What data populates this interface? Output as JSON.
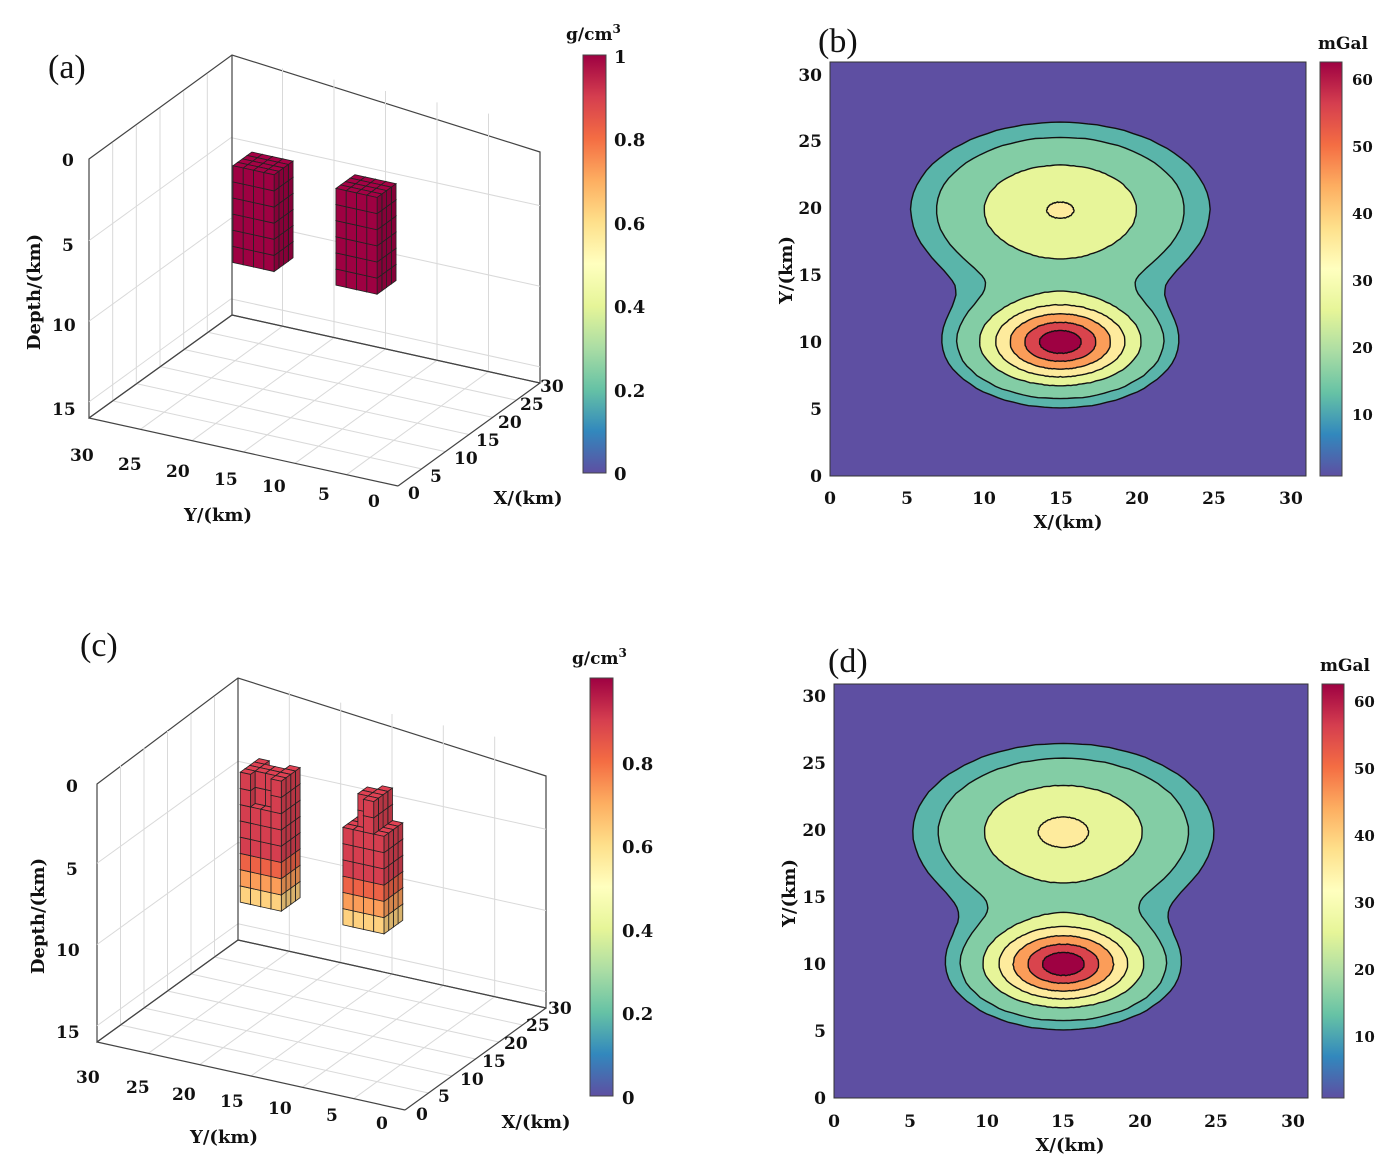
{
  "colors": {
    "background": "#5e4fa2",
    "block_red": "#d53e4f",
    "grid": "#d9d9d9",
    "spectral_colormap": [
      "#5e4fa2",
      "#3288bd",
      "#66c2a5",
      "#abdda4",
      "#e6f598",
      "#ffffbf",
      "#fee08b",
      "#fdae61",
      "#f46d43",
      "#d53e4f",
      "#9e0142"
    ]
  },
  "panels": {
    "a": {
      "label": "(a)",
      "ylabel": "Y/(km)",
      "xlabel": "X/(km)",
      "zlabel": "Depth/(km)",
      "cb_unit": "g/cm",
      "cb_unit_sup": "3"
    },
    "b": {
      "label": "(b)",
      "xlabel": "X/(km)",
      "ylabel": "Y/(km)",
      "cb_unit": "mGal"
    },
    "c": {
      "label": "(c)",
      "ylabel": "Y/(km)",
      "xlabel": "X/(km)",
      "zlabel": "Depth/(km)",
      "cb_unit": "g/cm",
      "cb_unit_sup": "3"
    },
    "d": {
      "label": "(d)",
      "xlabel": "X/(km)",
      "ylabel": "Y/(km)",
      "cb_unit": "mGal"
    }
  },
  "chart_data": [
    {
      "type": "scatter",
      "panel": "a",
      "description_type": "3d-voxel",
      "xlabel": "X/(km)",
      "ylabel": "Y/(km)",
      "zlabel": "Depth/(km)",
      "xlim": [
        0,
        30
      ],
      "ylim": [
        0,
        30
      ],
      "zlim": [
        0,
        16
      ],
      "x_ticks": [
        0,
        5,
        10,
        15,
        20,
        25,
        30
      ],
      "y_ticks": [
        30,
        25,
        20,
        15,
        10,
        5,
        0
      ],
      "z_ticks": [
        0,
        5,
        10,
        15
      ],
      "bodies": [
        {
          "x": [
            13,
            17
          ],
          "y": [
            8,
            12
          ],
          "z": [
            2,
            8
          ],
          "density": 1.0
        },
        {
          "x": [
            13,
            17
          ],
          "y": [
            18,
            22
          ],
          "z": [
            2,
            8
          ],
          "density": 1.0
        }
      ],
      "colorbar": {
        "label": "g/cm3",
        "range": [
          0,
          1
        ],
        "ticks": [
          "0",
          "0.2",
          "0.4",
          "0.6",
          "0.8",
          "1"
        ]
      }
    },
    {
      "type": "heatmap",
      "panel": "b",
      "description_type": "contour",
      "xlabel": "X/(km)",
      "ylabel": "Y/(km)",
      "xlim": [
        0,
        31
      ],
      "ylim": [
        0,
        31
      ],
      "x_ticks": [
        0,
        5,
        10,
        15,
        20,
        25,
        30
      ],
      "y_ticks": [
        0,
        5,
        10,
        15,
        20,
        25,
        30
      ],
      "contour_levels": [
        10,
        20,
        30,
        40,
        50,
        60
      ],
      "peaks": [
        {
          "x": 15,
          "y": 10,
          "value": 62
        },
        {
          "x": 15,
          "y": 20,
          "value": 30
        }
      ],
      "colorbar": {
        "label": "mGal",
        "range": [
          0,
          62
        ],
        "ticks": [
          "10",
          "20",
          "30",
          "40",
          "50",
          "60"
        ]
      }
    },
    {
      "type": "scatter",
      "panel": "c",
      "description_type": "3d-voxel",
      "xlabel": "X/(km)",
      "ylabel": "Y/(km)",
      "zlabel": "Depth/(km)",
      "xlim": [
        0,
        30
      ],
      "ylim": [
        0,
        30
      ],
      "zlim": [
        0,
        16
      ],
      "x_ticks": [
        0,
        5,
        10,
        15,
        20,
        25,
        30
      ],
      "y_ticks": [
        30,
        25,
        20,
        15,
        10,
        5,
        0
      ],
      "z_ticks": [
        0,
        5,
        10,
        15
      ],
      "bodies": [
        {
          "x": [
            13,
            17
          ],
          "y": [
            8,
            12
          ],
          "z": [
            1,
            9
          ],
          "density_core": 0.9,
          "density_edge": 0.55
        },
        {
          "x": [
            13,
            17
          ],
          "y": [
            18,
            22
          ],
          "z": [
            1,
            9
          ],
          "density_core": 0.9,
          "density_edge": 0.55
        }
      ],
      "colorbar": {
        "label": "g/cm3",
        "range": [
          0,
          1
        ],
        "ticks": [
          "0",
          "0.2",
          "0.4",
          "0.6",
          "0.8"
        ]
      }
    },
    {
      "type": "heatmap",
      "panel": "d",
      "description_type": "contour",
      "xlabel": "X/(km)",
      "ylabel": "Y/(km)",
      "xlim": [
        0,
        31
      ],
      "ylim": [
        0,
        31
      ],
      "x_ticks": [
        0,
        5,
        10,
        15,
        20,
        25,
        30
      ],
      "y_ticks": [
        0,
        5,
        10,
        15,
        20,
        25,
        30
      ],
      "contour_levels": [
        10,
        20,
        30,
        40,
        50,
        60
      ],
      "peaks": [
        {
          "x": 15,
          "y": 10,
          "value": 62
        },
        {
          "x": 15,
          "y": 20,
          "value": 31
        }
      ],
      "colorbar": {
        "label": "mGal",
        "range": [
          0,
          62
        ],
        "ticks": [
          "10",
          "20",
          "30",
          "40",
          "50",
          "60"
        ]
      }
    }
  ]
}
